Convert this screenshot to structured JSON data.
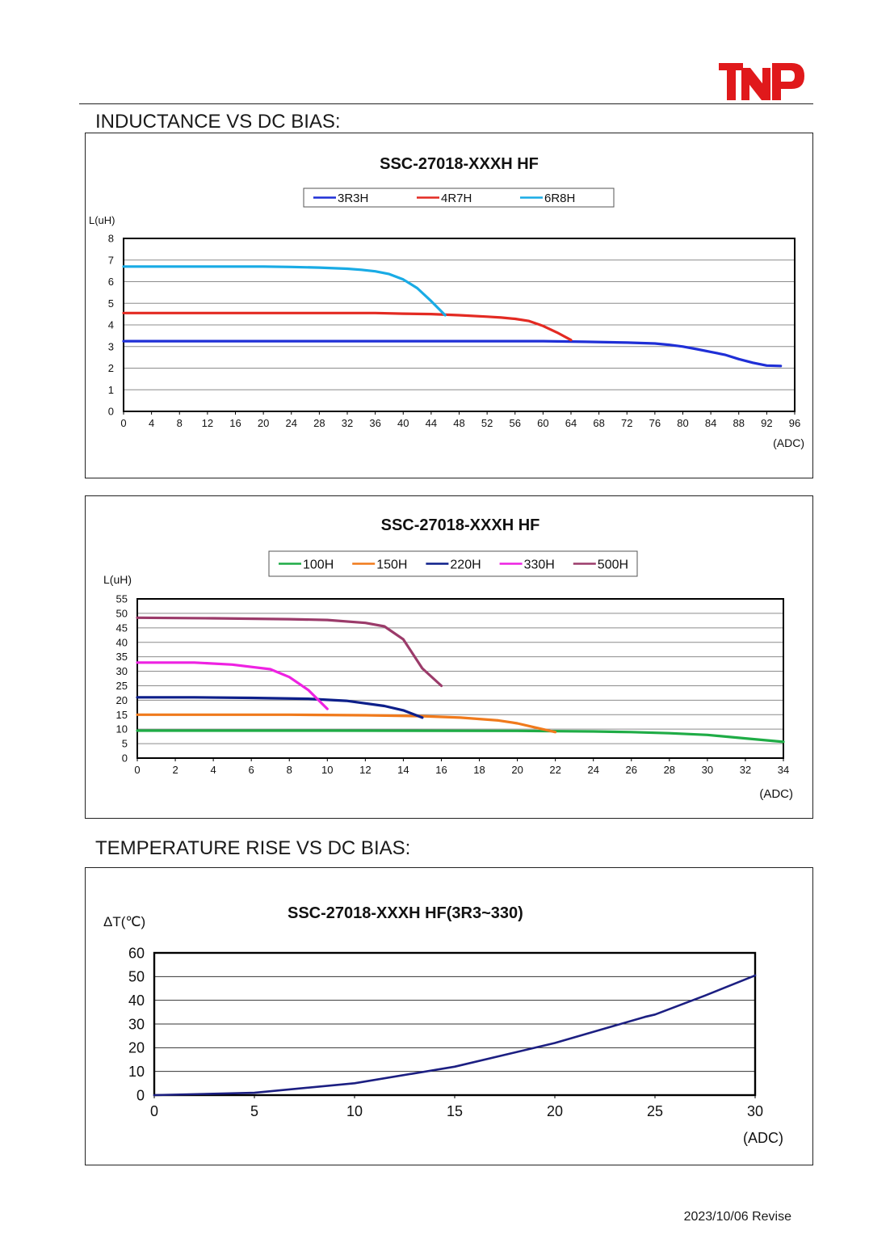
{
  "page": {
    "section1_title": "INDUCTANCE VS DC BIAS:",
    "section2_title": "TEMPERATURE RISE VS DC BIAS:",
    "footer_date": "2023/10/06 Revise"
  },
  "logo": {
    "text": "TNP",
    "color": "#e0191b"
  },
  "chart_data": [
    {
      "type": "line",
      "title": "SSC-27018-XXXH HF",
      "ylabel": "L(uH)",
      "xlabel": "(ADC)",
      "xlim": [
        0,
        96
      ],
      "ylim": [
        0,
        8
      ],
      "xticks": [
        0,
        4,
        8,
        12,
        16,
        20,
        24,
        28,
        32,
        36,
        40,
        44,
        48,
        52,
        56,
        60,
        64,
        68,
        72,
        76,
        80,
        84,
        88,
        92,
        96
      ],
      "yticks": [
        0,
        1,
        2,
        3,
        4,
        5,
        6,
        7,
        8
      ],
      "grid": true,
      "legend_position": "top-center",
      "series": [
        {
          "name": "3R3H",
          "color": "#1f2fd6",
          "points": [
            [
              0,
              3.25
            ],
            [
              20,
              3.25
            ],
            [
              40,
              3.25
            ],
            [
              60,
              3.25
            ],
            [
              66,
              3.22
            ],
            [
              72,
              3.18
            ],
            [
              76,
              3.14
            ],
            [
              78,
              3.08
            ],
            [
              80,
              3.0
            ],
            [
              82,
              2.88
            ],
            [
              84,
              2.75
            ],
            [
              86,
              2.62
            ],
            [
              88,
              2.42
            ],
            [
              90,
              2.25
            ],
            [
              92,
              2.12
            ],
            [
              94,
              2.1
            ]
          ]
        },
        {
          "name": "4R7H",
          "color": "#e32a22",
          "points": [
            [
              0,
              4.55
            ],
            [
              20,
              4.55
            ],
            [
              36,
              4.55
            ],
            [
              40,
              4.52
            ],
            [
              44,
              4.5
            ],
            [
              48,
              4.45
            ],
            [
              52,
              4.38
            ],
            [
              54,
              4.34
            ],
            [
              56,
              4.28
            ],
            [
              58,
              4.18
            ],
            [
              60,
              3.95
            ],
            [
              62,
              3.65
            ],
            [
              64,
              3.3
            ]
          ]
        },
        {
          "name": "6R8H",
          "color": "#19abe5",
          "points": [
            [
              0,
              6.7
            ],
            [
              20,
              6.7
            ],
            [
              24,
              6.68
            ],
            [
              28,
              6.65
            ],
            [
              32,
              6.6
            ],
            [
              34,
              6.55
            ],
            [
              36,
              6.48
            ],
            [
              38,
              6.35
            ],
            [
              40,
              6.1
            ],
            [
              42,
              5.7
            ],
            [
              44,
              5.1
            ],
            [
              46,
              4.45
            ]
          ]
        }
      ]
    },
    {
      "type": "line",
      "title": "SSC-27018-XXXH HF",
      "ylabel": "L(uH)",
      "xlabel": "(ADC)",
      "xlim": [
        0,
        34
      ],
      "ylim": [
        0,
        55
      ],
      "xticks": [
        0,
        2,
        4,
        6,
        8,
        10,
        12,
        14,
        16,
        18,
        20,
        22,
        24,
        26,
        28,
        30,
        32,
        34
      ],
      "yticks": [
        0,
        5,
        10,
        15,
        20,
        25,
        30,
        35,
        40,
        45,
        50,
        55
      ],
      "grid": true,
      "legend_position": "top-center",
      "series": [
        {
          "name": "100H",
          "color": "#1fac46",
          "points": [
            [
              0,
              9.5
            ],
            [
              10,
              9.5
            ],
            [
              20,
              9.4
            ],
            [
              24,
              9.2
            ],
            [
              26,
              9.0
            ],
            [
              28,
              8.6
            ],
            [
              30,
              8.0
            ],
            [
              32,
              6.8
            ],
            [
              34,
              5.6
            ]
          ]
        },
        {
          "name": "150H",
          "color": "#f07a1c",
          "points": [
            [
              0,
              15
            ],
            [
              8,
              15
            ],
            [
              12,
              14.8
            ],
            [
              15,
              14.5
            ],
            [
              17,
              14.0
            ],
            [
              19,
              13.0
            ],
            [
              20,
              12.0
            ],
            [
              21,
              10.5
            ],
            [
              22,
              9.0
            ]
          ]
        },
        {
          "name": "220H",
          "color": "#0d1f8a",
          "points": [
            [
              0,
              21
            ],
            [
              3,
              21
            ],
            [
              6,
              20.8
            ],
            [
              9,
              20.5
            ],
            [
              11,
              19.8
            ],
            [
              13,
              18.0
            ],
            [
              14,
              16.5
            ],
            [
              15,
              14.0
            ]
          ]
        },
        {
          "name": "330H",
          "color": "#ee22e2",
          "points": [
            [
              0,
              33
            ],
            [
              3,
              33
            ],
            [
              5,
              32.3
            ],
            [
              7,
              30.7
            ],
            [
              8,
              28.0
            ],
            [
              9,
              23.5
            ],
            [
              10,
              17.0
            ]
          ]
        },
        {
          "name": "500H",
          "color": "#9b3b6a",
          "points": [
            [
              0,
              48.5
            ],
            [
              4,
              48.3
            ],
            [
              8,
              48
            ],
            [
              10,
              47.7
            ],
            [
              12,
              46.7
            ],
            [
              13,
              45.5
            ],
            [
              14,
              41
            ],
            [
              15,
              31
            ],
            [
              16,
              25
            ]
          ]
        }
      ]
    },
    {
      "type": "line",
      "title": "SSC-27018-XXXH HF(3R3~330)",
      "ylabel": "ΔT(℃)",
      "xlabel": "(ADC)",
      "xlim": [
        0,
        30
      ],
      "ylim": [
        0,
        60
      ],
      "xticks": [
        0,
        5,
        10,
        15,
        20,
        25,
        30
      ],
      "yticks": [
        0,
        10,
        20,
        30,
        40,
        50,
        60
      ],
      "grid": true,
      "series": [
        {
          "name": "",
          "color": "#1c1f82",
          "points": [
            [
              0,
              0
            ],
            [
              5,
              1
            ],
            [
              10,
              5
            ],
            [
              15,
              12
            ],
            [
              20,
              22
            ],
            [
              24.5,
              33
            ],
            [
              25,
              34
            ],
            [
              27.5,
              42
            ],
            [
              30,
              50.5
            ]
          ]
        }
      ]
    }
  ]
}
